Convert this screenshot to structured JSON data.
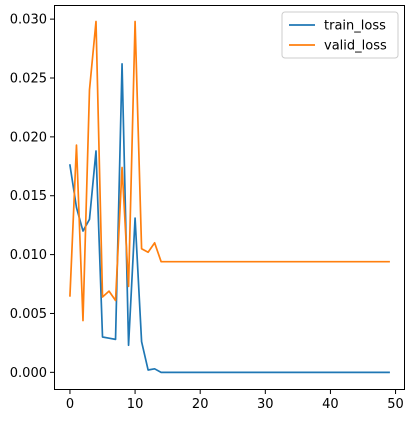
{
  "chart_data": {
    "type": "line",
    "title": "",
    "xlabel": "",
    "ylabel": "",
    "xlim": [
      -2.45,
      51.45
    ],
    "ylim": [
      -0.0015,
      0.0312
    ],
    "x_ticks": [
      0,
      10,
      20,
      30,
      40,
      50
    ],
    "x_tick_labels": [
      "0",
      "10",
      "20",
      "30",
      "40",
      "50"
    ],
    "y_ticks": [
      0.0,
      0.005,
      0.01,
      0.015,
      0.02,
      0.025,
      0.03
    ],
    "y_tick_labels": [
      "0.000",
      "0.005",
      "0.010",
      "0.015",
      "0.020",
      "0.025",
      "0.030"
    ],
    "grid": false,
    "legend_position": "top-right",
    "x": [
      0,
      1,
      2,
      3,
      4,
      5,
      6,
      7,
      8,
      9,
      10,
      11,
      12,
      13,
      14,
      15,
      16,
      17,
      18,
      19,
      20,
      21,
      22,
      23,
      24,
      25,
      26,
      27,
      28,
      29,
      30,
      31,
      32,
      33,
      34,
      35,
      36,
      37,
      38,
      39,
      40,
      41,
      42,
      43,
      44,
      45,
      46,
      47,
      48,
      49
    ],
    "series": [
      {
        "name": "train_loss",
        "color": "#1f77b4",
        "values": [
          0.0176,
          0.014,
          0.012,
          0.013,
          0.0188,
          0.003,
          0.0029,
          0.0028,
          0.0262,
          0.0023,
          0.0131,
          0.0026,
          0.0002,
          0.0003,
          0.0,
          0.0,
          0.0,
          0.0,
          0.0,
          0.0,
          0.0,
          0.0,
          0.0,
          0.0,
          0.0,
          0.0,
          0.0,
          0.0,
          0.0,
          0.0,
          0.0,
          0.0,
          0.0,
          0.0,
          0.0,
          0.0,
          0.0,
          0.0,
          0.0,
          0.0,
          0.0,
          0.0,
          0.0,
          0.0,
          0.0,
          0.0,
          0.0,
          0.0,
          0.0,
          0.0
        ]
      },
      {
        "name": "valid_loss",
        "color": "#ff7f0e",
        "values": [
          0.0065,
          0.0193,
          0.0044,
          0.024,
          0.0298,
          0.0064,
          0.0069,
          0.0061,
          0.0174,
          0.0073,
          0.0298,
          0.0105,
          0.0102,
          0.011,
          0.0094,
          0.0094,
          0.0094,
          0.0094,
          0.0094,
          0.0094,
          0.0094,
          0.0094,
          0.0094,
          0.0094,
          0.0094,
          0.0094,
          0.0094,
          0.0094,
          0.0094,
          0.0094,
          0.0094,
          0.0094,
          0.0094,
          0.0094,
          0.0094,
          0.0094,
          0.0094,
          0.0094,
          0.0094,
          0.0094,
          0.0094,
          0.0094,
          0.0094,
          0.0094,
          0.0094,
          0.0094,
          0.0094,
          0.0094,
          0.0094,
          0.0094
        ]
      }
    ]
  }
}
